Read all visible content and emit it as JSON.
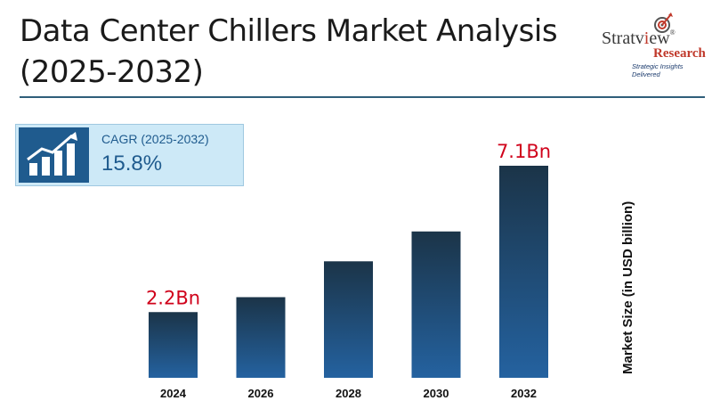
{
  "title": {
    "line1": "Data Center Chillers Market Analysis",
    "line2": "(2025-2032)"
  },
  "logo": {
    "brand_prefix": "Stratv",
    "brand_suffix": "ew",
    "registered": "®",
    "sub": "Research",
    "tagline": "Strategic Insights Delivered"
  },
  "cagr": {
    "label": "CAGR (2025-2032)",
    "value": "15.8%",
    "icon": "growth-chart-icon"
  },
  "colors": {
    "bar_top": "#1b3448",
    "bar_bottom": "#2462a0",
    "value_label": "#d0021b",
    "accent": "#1f5b8e"
  },
  "chart_data": {
    "type": "bar",
    "categories": [
      "2024",
      "2026",
      "2028",
      "2030",
      "2032"
    ],
    "values": [
      2.2,
      2.7,
      3.9,
      4.9,
      7.1
    ],
    "data_labels": [
      "2.2Bn",
      "",
      "",
      "",
      "7.1Bn"
    ],
    "ylabel": "Market Size (in USD billion)",
    "xlabel": "",
    "ylim": [
      0,
      7.1
    ],
    "grid": false
  }
}
